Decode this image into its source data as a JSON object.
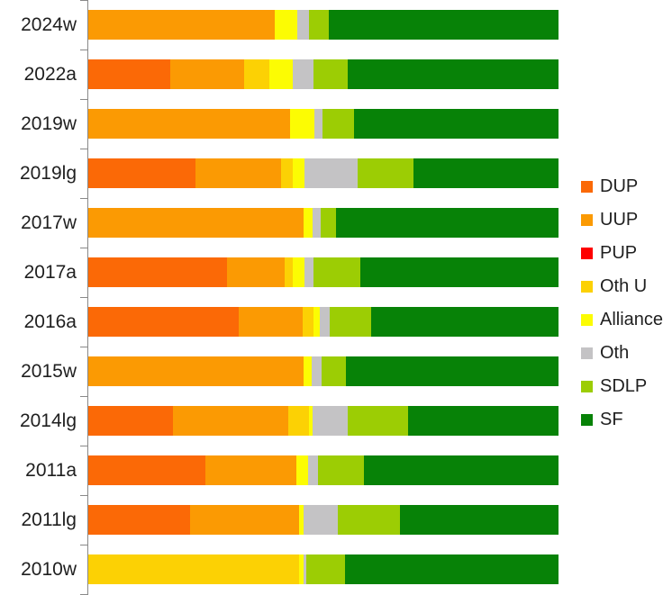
{
  "chart_data": {
    "type": "bar",
    "stacked": true,
    "orientation": "horizontal",
    "title": "",
    "xlabel": "",
    "ylabel": "",
    "xlim": [
      0,
      100
    ],
    "unit": "percent",
    "grid": false,
    "legend_position": "right",
    "axis_color": "#898989",
    "label_color": "#1f1f1f",
    "categories": [
      "2024w",
      "2022a",
      "2019w",
      "2019lg",
      "2017w",
      "2017a",
      "2016a",
      "2015w",
      "2014lg",
      "2011a",
      "2011lg",
      "2010w"
    ],
    "series": [
      {
        "name": "DUP",
        "color": "#FB6906",
        "values": [
          0,
          17.4,
          0,
          22.8,
          0,
          29.5,
          32.0,
          0,
          18.0,
          24.9,
          21.6,
          0
        ]
      },
      {
        "name": "UUP",
        "color": "#FB9A03",
        "values": [
          39.7,
          15.7,
          42.9,
          18.2,
          45.8,
          12.3,
          13.6,
          45.8,
          24.5,
          19.3,
          23.2,
          0
        ]
      },
      {
        "name": "PUP",
        "color": "#FE0000",
        "values": [
          0,
          0,
          0,
          0,
          0,
          0,
          0,
          0,
          0,
          0,
          0,
          0
        ]
      },
      {
        "name": "Oth U",
        "color": "#FCD104",
        "values": [
          0,
          5.4,
          0,
          2.5,
          0,
          1.7,
          2.3,
          0,
          4.4,
          0,
          0,
          44.8
        ]
      },
      {
        "name": "Alliance",
        "color": "#FCFC03",
        "values": [
          4.8,
          5.0,
          5.2,
          2.5,
          1.9,
          2.5,
          1.3,
          1.7,
          0.8,
          2.5,
          1.0,
          1.0
        ]
      },
      {
        "name": "Oth",
        "color": "#C4C3C5",
        "values": [
          2.5,
          4.4,
          1.7,
          11.3,
          1.7,
          1.9,
          2.1,
          2.1,
          7.5,
          2.1,
          7.3,
          0.6
        ]
      },
      {
        "name": "SDLP",
        "color": "#9CCD04",
        "values": [
          4.2,
          7.3,
          6.7,
          11.9,
          3.3,
          10.0,
          8.8,
          5.2,
          12.8,
          9.8,
          13.2,
          8.2
        ]
      },
      {
        "name": "SF",
        "color": "#078207",
        "values": [
          48.8,
          44.8,
          43.5,
          30.8,
          47.3,
          42.1,
          39.9,
          45.2,
          32.0,
          41.4,
          33.7,
          45.4
        ]
      }
    ],
    "legend_items": [
      "DUP",
      "UUP",
      "PUP",
      "Oth U",
      "Alliance",
      "Oth",
      "SDLP",
      "SF"
    ]
  }
}
